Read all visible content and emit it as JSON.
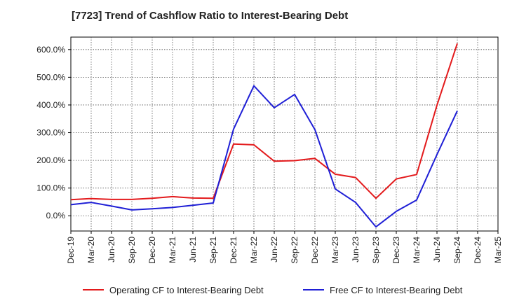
{
  "chart_data": {
    "type": "line",
    "title": "[7723]  Trend of Cashflow Ratio to Interest-Bearing Debt",
    "xlabel": "",
    "ylabel": "",
    "x_ticks": [
      "Dec-19",
      "Mar-20",
      "Jun-20",
      "Sep-20",
      "Dec-20",
      "Mar-21",
      "Jun-21",
      "Sep-21",
      "Dec-21",
      "Mar-22",
      "Jun-22",
      "Sep-22",
      "Dec-22",
      "Mar-23",
      "Jun-23",
      "Sep-23",
      "Dec-23",
      "Mar-24",
      "Jun-24",
      "Sep-24",
      "Dec-24",
      "Mar-25"
    ],
    "y_ticks": [
      "0.0%",
      "100.0%",
      "200.0%",
      "300.0%",
      "400.0%",
      "500.0%",
      "600.0%"
    ],
    "ylim": [
      -55,
      645
    ],
    "grid": true,
    "legend_position": "bottom",
    "series": [
      {
        "name": "Operating CF to Interest-Bearing Debt",
        "color": "#e31a1c",
        "x": [
          "Dec-19",
          "Mar-20",
          "Jun-20",
          "Sep-20",
          "Dec-20",
          "Mar-21",
          "Jun-21",
          "Sep-21",
          "Dec-21",
          "Mar-22",
          "Jun-22",
          "Sep-22",
          "Dec-22",
          "Mar-23",
          "Jun-23",
          "Sep-23",
          "Dec-23",
          "Mar-24",
          "Jun-24",
          "Sep-24"
        ],
        "values": [
          58,
          62,
          59,
          59,
          63,
          69,
          64,
          63,
          259,
          256,
          197,
          199,
          207,
          150,
          138,
          63,
          133,
          149,
          399,
          622
        ]
      },
      {
        "name": "Free CF to Interest-Bearing Debt",
        "color": "#1f1fd6",
        "x": [
          "Dec-19",
          "Mar-20",
          "Jun-20",
          "Sep-20",
          "Dec-20",
          "Mar-21",
          "Jun-21",
          "Sep-21",
          "Dec-21",
          "Mar-22",
          "Jun-22",
          "Sep-22",
          "Dec-22",
          "Mar-23",
          "Jun-23",
          "Sep-23",
          "Dec-23",
          "Mar-24",
          "Jun-24",
          "Sep-24"
        ],
        "values": [
          40,
          48,
          35,
          21,
          25,
          30,
          38,
          46,
          313,
          469,
          390,
          438,
          311,
          97,
          48,
          -40,
          16,
          57,
          221,
          379
        ]
      }
    ]
  }
}
